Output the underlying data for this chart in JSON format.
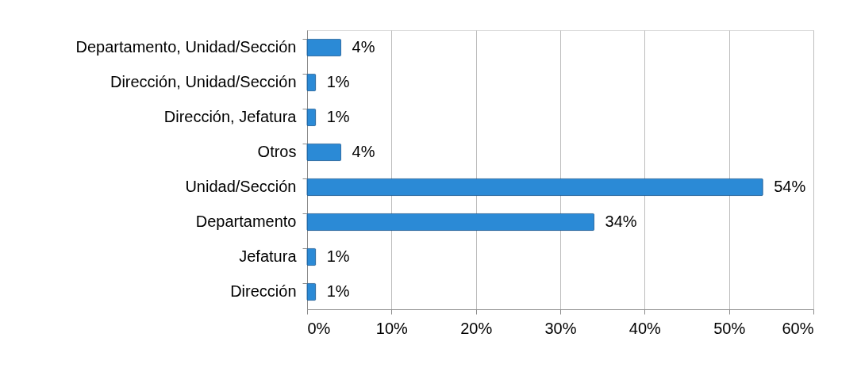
{
  "chart_data": {
    "type": "bar",
    "orientation": "horizontal",
    "categories": [
      "Departamento, Unidad/Sección",
      "Dirección, Unidad/Sección",
      "Dirección, Jefatura",
      "Otros",
      "Unidad/Sección",
      "Departamento",
      "Jefatura",
      "Dirección"
    ],
    "values": [
      4,
      1,
      1,
      4,
      54,
      34,
      1,
      1
    ],
    "value_labels": [
      "4%",
      "1%",
      "1%",
      "4%",
      "54%",
      "34%",
      "1%",
      "1%"
    ],
    "color": "#2b8ad6",
    "xlim": [
      0,
      60
    ],
    "xticks": [
      {
        "value": 0,
        "label": "0%"
      },
      {
        "value": 10,
        "label": "10%"
      },
      {
        "value": 20,
        "label": "20%"
      },
      {
        "value": 30,
        "label": "30%"
      },
      {
        "value": 40,
        "label": "40%"
      },
      {
        "value": 50,
        "label": "50%"
      },
      {
        "value": 60,
        "label": "60%"
      }
    ],
    "grid": "x"
  }
}
